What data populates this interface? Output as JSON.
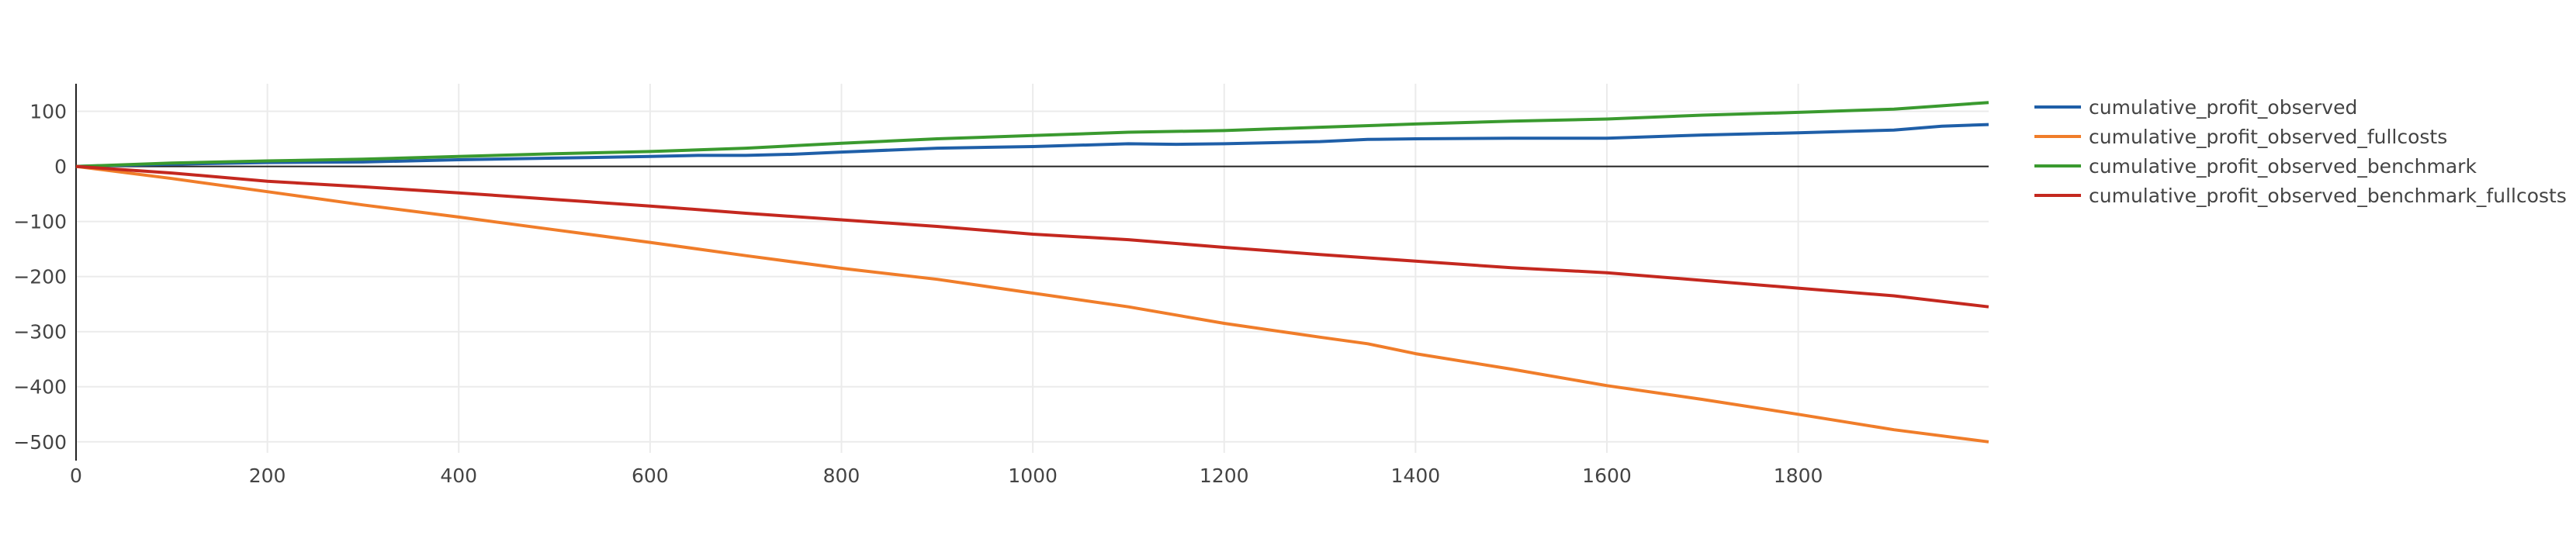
{
  "chart_data": {
    "type": "line",
    "title": "",
    "xlabel": "",
    "ylabel": "",
    "xlim": [
      0,
      1999
    ],
    "ylim": [
      -520,
      150
    ],
    "x_ticks": [
      0,
      200,
      400,
      600,
      800,
      1000,
      1200,
      1400,
      1600,
      1800
    ],
    "y_ticks": [
      100,
      0,
      -100,
      -200,
      -300,
      -400,
      -500
    ],
    "x_tick_labels": [
      "0",
      "200",
      "400",
      "600",
      "800",
      "1000",
      "1200",
      "1400",
      "1600",
      "1800"
    ],
    "y_tick_labels": [
      "100",
      "0",
      "−100",
      "−200",
      "−300",
      "−400",
      "−500"
    ],
    "grid": true,
    "zero_line": true,
    "legend_position": "right",
    "series": [
      {
        "name": "cumulative_profit_observed",
        "color": "#1f5fa8",
        "points": [
          [
            0,
            0
          ],
          [
            100,
            4
          ],
          [
            200,
            7
          ],
          [
            300,
            8
          ],
          [
            400,
            12
          ],
          [
            500,
            15
          ],
          [
            600,
            18
          ],
          [
            650,
            20
          ],
          [
            700,
            20
          ],
          [
            750,
            22
          ],
          [
            800,
            26
          ],
          [
            900,
            33
          ],
          [
            1000,
            36
          ],
          [
            1100,
            41
          ],
          [
            1150,
            40
          ],
          [
            1200,
            41
          ],
          [
            1300,
            45
          ],
          [
            1350,
            49
          ],
          [
            1400,
            50
          ],
          [
            1500,
            51
          ],
          [
            1600,
            51
          ],
          [
            1700,
            57
          ],
          [
            1800,
            61
          ],
          [
            1900,
            66
          ],
          [
            1950,
            73
          ],
          [
            1999,
            76
          ]
        ]
      },
      {
        "name": "cumulative_profit_observed_fullcosts",
        "color": "#f07d2a",
        "points": [
          [
            0,
            0
          ],
          [
            100,
            -22
          ],
          [
            200,
            -46
          ],
          [
            300,
            -70
          ],
          [
            400,
            -92
          ],
          [
            500,
            -115
          ],
          [
            600,
            -138
          ],
          [
            700,
            -162
          ],
          [
            800,
            -185
          ],
          [
            900,
            -205
          ],
          [
            1000,
            -230
          ],
          [
            1100,
            -255
          ],
          [
            1200,
            -285
          ],
          [
            1300,
            -310
          ],
          [
            1350,
            -322
          ],
          [
            1400,
            -340
          ],
          [
            1500,
            -368
          ],
          [
            1600,
            -398
          ],
          [
            1700,
            -423
          ],
          [
            1800,
            -450
          ],
          [
            1900,
            -478
          ],
          [
            1999,
            -500
          ]
        ]
      },
      {
        "name": "cumulative_profit_observed_benchmark",
        "color": "#3a9a2f",
        "points": [
          [
            0,
            0
          ],
          [
            100,
            6
          ],
          [
            200,
            10
          ],
          [
            300,
            13
          ],
          [
            400,
            18
          ],
          [
            500,
            23
          ],
          [
            600,
            27
          ],
          [
            700,
            33
          ],
          [
            800,
            42
          ],
          [
            900,
            50
          ],
          [
            1000,
            56
          ],
          [
            1100,
            62
          ],
          [
            1200,
            65
          ],
          [
            1300,
            71
          ],
          [
            1400,
            77
          ],
          [
            1500,
            82
          ],
          [
            1600,
            86
          ],
          [
            1700,
            93
          ],
          [
            1800,
            98
          ],
          [
            1900,
            104
          ],
          [
            1999,
            116
          ]
        ]
      },
      {
        "name": "cumulative_profit_observed_benchmark_fullcosts",
        "color": "#c4281f",
        "points": [
          [
            0,
            0
          ],
          [
            100,
            -12
          ],
          [
            200,
            -27
          ],
          [
            300,
            -37
          ],
          [
            400,
            -48
          ],
          [
            500,
            -60
          ],
          [
            600,
            -72
          ],
          [
            700,
            -85
          ],
          [
            800,
            -97
          ],
          [
            900,
            -109
          ],
          [
            1000,
            -123
          ],
          [
            1100,
            -133
          ],
          [
            1200,
            -147
          ],
          [
            1300,
            -160
          ],
          [
            1400,
            -172
          ],
          [
            1500,
            -184
          ],
          [
            1600,
            -193
          ],
          [
            1700,
            -207
          ],
          [
            1800,
            -221
          ],
          [
            1900,
            -235
          ],
          [
            1999,
            -255
          ]
        ]
      }
    ]
  }
}
